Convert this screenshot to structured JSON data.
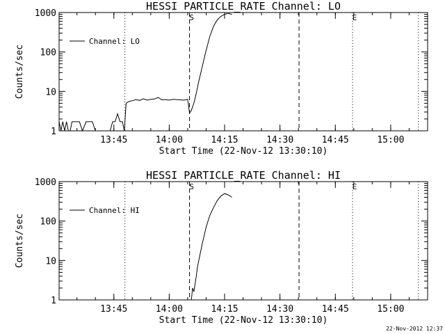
{
  "footer_timestamp": "22-Nov-2012 12:37",
  "chart_data": [
    {
      "type": "line",
      "title": "HESSI PARTICLE_RATE Channel: LO",
      "xlabel": "Start Time (22-Nov-12 13:30:10)",
      "ylabel": "Counts/sec",
      "yscale": "log",
      "ylim": [
        1,
        1000
      ],
      "yticks": [
        "1",
        "10",
        "100",
        "1000"
      ],
      "xlim": [
        "13:30:10",
        "15:10:00"
      ],
      "xticks": [
        "13:45",
        "14:00",
        "14:15",
        "14:30",
        "14:45",
        "15:00"
      ],
      "legend": {
        "position": "top-left",
        "label": "Channel: LO"
      },
      "markers": [
        {
          "time": "13:48:00",
          "style": "dotted",
          "label": ""
        },
        {
          "time": "14:05:30",
          "style": "dashed",
          "label": "S"
        },
        {
          "time": "14:35:10",
          "style": "dashed",
          "label": ""
        },
        {
          "time": "14:49:40",
          "style": "dotted",
          "label": "E"
        },
        {
          "time": "15:07:30",
          "style": "dotted",
          "label": ""
        }
      ],
      "series": [
        {
          "name": "Channel: LO",
          "x": [
            "13:30:10",
            "13:30:40",
            "13:31:10",
            "13:31:40",
            "13:32:10",
            "13:32:40",
            "13:33:10",
            "13:33:40",
            "13:34:10",
            "13:35:00",
            "13:35:40",
            "13:36:30",
            "13:37:30",
            "13:38:20",
            "13:39:10",
            "13:40:00",
            "13:40:40",
            "13:41:20",
            "13:42:00",
            "13:42:40",
            "13:43:20",
            "13:44:00",
            "13:44:40",
            "13:45:20",
            "13:46:00",
            "13:46:40",
            "13:47:20",
            "13:47:50",
            "13:48:20",
            "13:49:00",
            "13:50:00",
            "13:51:00",
            "13:52:00",
            "13:53:00",
            "13:54:00",
            "13:55:00",
            "13:56:00",
            "13:57:00",
            "13:58:00",
            "13:59:00",
            "14:00:00",
            "14:01:00",
            "14:02:00",
            "14:03:00",
            "14:04:00",
            "14:05:00",
            "14:05:30",
            "14:06:00",
            "14:06:40",
            "14:07:20",
            "14:08:00",
            "14:09:00",
            "14:10:00",
            "14:11:00",
            "14:12:00",
            "14:13:00",
            "14:14:00",
            "14:15:00",
            "14:16:00",
            "14:17:00"
          ],
          "y": [
            1.7,
            1,
            1.7,
            1,
            1.7,
            1,
            1,
            1.7,
            1.7,
            1.7,
            1.7,
            1,
            1.7,
            1.7,
            1.7,
            1,
            1,
            1,
            1,
            1,
            1,
            1,
            1.7,
            1.7,
            2.7,
            1.7,
            1.7,
            1,
            5,
            5.5,
            5.8,
            6.2,
            5.9,
            6.5,
            6.0,
            6.3,
            6.4,
            7.0,
            6.1,
            6.2,
            6.0,
            6.3,
            6.2,
            6.1,
            6.0,
            6.3,
            2.8,
            3.3,
            5,
            9,
            18,
            45,
            110,
            250,
            450,
            650,
            800,
            900,
            950,
            900
          ]
        }
      ]
    },
    {
      "type": "line",
      "title": "HESSI PARTICLE_RATE Channel: HI",
      "xlabel": "Start Time (22-Nov-12 13:30:10)",
      "ylabel": "Counts/sec",
      "yscale": "log",
      "ylim": [
        1,
        1000
      ],
      "yticks": [
        "1",
        "10",
        "100",
        "1000"
      ],
      "xlim": [
        "13:30:10",
        "15:10:00"
      ],
      "xticks": [
        "13:45",
        "14:00",
        "14:15",
        "14:30",
        "14:45",
        "15:00"
      ],
      "legend": {
        "position": "top-left",
        "label": "Channel: HI"
      },
      "markers": [
        {
          "time": "13:48:00",
          "style": "dotted",
          "label": ""
        },
        {
          "time": "14:05:30",
          "style": "dashed",
          "label": "S"
        },
        {
          "time": "14:35:10",
          "style": "dashed",
          "label": ""
        },
        {
          "time": "14:49:40",
          "style": "dotted",
          "label": "E"
        },
        {
          "time": "15:07:30",
          "style": "dotted",
          "label": ""
        }
      ],
      "series": [
        {
          "name": "Channel: HI",
          "x": [
            "14:06:00",
            "14:06:20",
            "14:06:40",
            "14:07:00",
            "14:07:20",
            "14:07:40",
            "14:08:20",
            "14:09:00",
            "14:10:00",
            "14:11:00",
            "14:12:00",
            "14:13:00",
            "14:14:00",
            "14:15:00",
            "14:16:00",
            "14:17:00"
          ],
          "y": [
            1,
            2.0,
            1.6,
            2.5,
            4,
            7,
            14,
            28,
            70,
            140,
            220,
            330,
            430,
            500,
            460,
            400
          ]
        }
      ]
    }
  ]
}
